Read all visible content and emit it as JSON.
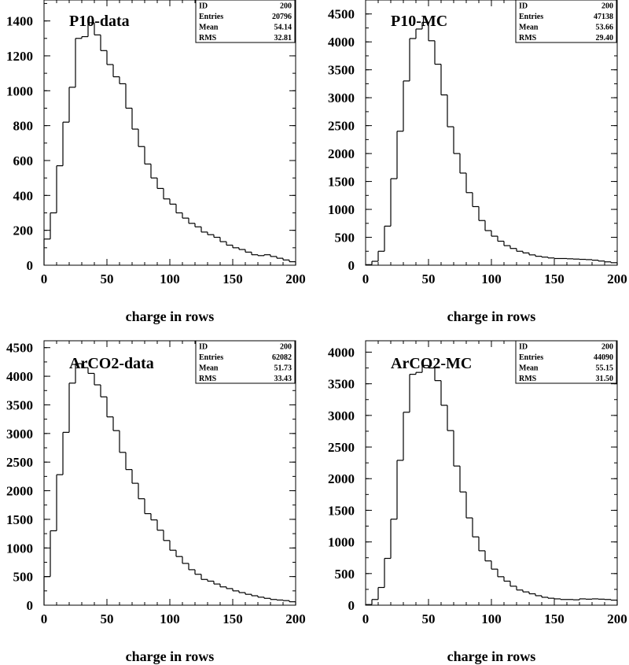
{
  "chart_data": [
    {
      "type": "bar",
      "title": "P10-data",
      "xlabel": "charge in rows",
      "ylabel": "",
      "xlim": [
        0,
        200
      ],
      "ylim": [
        0,
        1520
      ],
      "xticks": [
        0,
        50,
        100,
        150,
        200
      ],
      "yticks": [
        0,
        200,
        400,
        600,
        800,
        1000,
        1200,
        1400
      ],
      "bin_width": 5,
      "bin_edges_start": 0,
      "values": [
        150,
        300,
        570,
        820,
        1020,
        1300,
        1310,
        1390,
        1320,
        1230,
        1150,
        1080,
        1040,
        900,
        780,
        680,
        580,
        500,
        440,
        380,
        350,
        300,
        270,
        240,
        220,
        190,
        175,
        160,
        135,
        115,
        100,
        90,
        75,
        60,
        55,
        60,
        50,
        40,
        30,
        20
      ],
      "stats": {
        "rows": [
          {
            "label": "ID",
            "value": "200"
          },
          {
            "label": "Entries",
            "value": "20796"
          },
          {
            "label": "Mean",
            "value": "54.14"
          },
          {
            "label": "RMS",
            "value": "32.81"
          }
        ]
      }
    },
    {
      "type": "bar",
      "title": "P10-MC",
      "xlabel": "charge in rows",
      "ylabel": "",
      "xlim": [
        0,
        200
      ],
      "ylim": [
        0,
        4750
      ],
      "xticks": [
        0,
        50,
        100,
        150,
        200
      ],
      "yticks": [
        0,
        500,
        1000,
        1500,
        2000,
        2500,
        3000,
        3500,
        4000,
        4500
      ],
      "bin_width": 5,
      "bin_edges_start": 0,
      "values": [
        10,
        70,
        250,
        700,
        1550,
        2400,
        3300,
        4060,
        4230,
        4350,
        4020,
        3600,
        3050,
        2480,
        2000,
        1650,
        1300,
        1050,
        800,
        620,
        520,
        430,
        350,
        300,
        250,
        220,
        185,
        160,
        145,
        130,
        120,
        120,
        115,
        110,
        105,
        100,
        90,
        75,
        60,
        45
      ],
      "stats": {
        "rows": [
          {
            "label": "ID",
            "value": "200"
          },
          {
            "label": "Entries",
            "value": "47138"
          },
          {
            "label": "Mean",
            "value": "53.66"
          },
          {
            "label": "RMS",
            "value": "29.40"
          }
        ]
      }
    },
    {
      "type": "bar",
      "title": "ArCO2-data",
      "xlabel": "charge in rows",
      "ylabel": "",
      "xlim": [
        0,
        200
      ],
      "ylim": [
        0,
        4620
      ],
      "xticks": [
        0,
        50,
        100,
        150,
        200
      ],
      "yticks": [
        0,
        500,
        1000,
        1500,
        2000,
        2500,
        3000,
        3500,
        4000,
        4500
      ],
      "bin_width": 5,
      "bin_edges_start": 0,
      "values": [
        500,
        1300,
        2280,
        3020,
        3880,
        4220,
        4150,
        4050,
        3850,
        3640,
        3290,
        3050,
        2670,
        2370,
        2130,
        1860,
        1600,
        1490,
        1310,
        1130,
        960,
        850,
        730,
        620,
        540,
        450,
        420,
        370,
        320,
        290,
        250,
        220,
        190,
        165,
        140,
        120,
        100,
        90,
        80,
        60
      ],
      "stats": {
        "rows": [
          {
            "label": "ID",
            "value": "200"
          },
          {
            "label": "Entries",
            "value": "62082"
          },
          {
            "label": "Mean",
            "value": "51.73"
          },
          {
            "label": "RMS",
            "value": "33.43"
          }
        ]
      }
    },
    {
      "type": "bar",
      "title": "ArCO2-MC",
      "xlabel": "charge in rows",
      "ylabel": "",
      "xlim": [
        0,
        200
      ],
      "ylim": [
        0,
        4180
      ],
      "xticks": [
        0,
        50,
        100,
        150,
        200
      ],
      "yticks": [
        0,
        500,
        1000,
        1500,
        2000,
        2500,
        3000,
        3500,
        4000
      ],
      "bin_width": 5,
      "bin_edges_start": 0,
      "values": [
        10,
        90,
        280,
        740,
        1360,
        2290,
        3050,
        3650,
        3680,
        3790,
        3750,
        3550,
        3160,
        2760,
        2200,
        1790,
        1380,
        1080,
        860,
        700,
        570,
        450,
        380,
        300,
        240,
        210,
        180,
        150,
        125,
        110,
        100,
        90,
        90,
        85,
        100,
        95,
        100,
        95,
        90,
        80
      ],
      "stats": {
        "rows": [
          {
            "label": "ID",
            "value": "200"
          },
          {
            "label": "Entries",
            "value": "44090"
          },
          {
            "label": "Mean",
            "value": "55.15"
          },
          {
            "label": "RMS",
            "value": "31.50"
          }
        ]
      }
    }
  ]
}
